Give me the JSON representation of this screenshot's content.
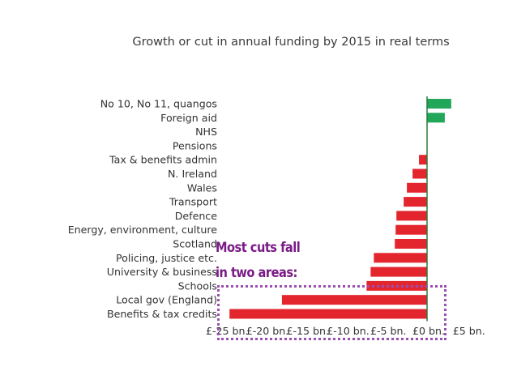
{
  "chart_data": {
    "type": "bar",
    "orientation": "horizontal",
    "title": "Growth or cut in annual funding by 2015 in real terms",
    "xlabel": "",
    "ylabel": "",
    "xlim": [
      -25,
      5
    ],
    "categories": [
      "No 10, No 11, quangos",
      "Foreign aid",
      "NHS",
      "Pensions",
      "Tax & benefits admin",
      "N. Ireland",
      "Wales",
      "Transport",
      "Defence",
      "Energy, environment, culture",
      "Scotland",
      "Policing, justice etc.",
      "University & business",
      "Schools",
      "Local gov (England)",
      "Benefits & tax credits"
    ],
    "values": [
      3.0,
      2.2,
      0,
      0,
      -1.0,
      -1.8,
      -2.5,
      -2.9,
      -3.8,
      -3.9,
      -4.0,
      -6.6,
      -7.0,
      -7.5,
      -18.0,
      -24.5
    ],
    "x_tick_values": [
      -25,
      -20,
      -15,
      -10,
      -5,
      0,
      5
    ],
    "x_tick_labels": [
      "£-25 bn.",
      "£-20 bn.",
      "£-15 bn.",
      "£-10 bn.",
      "£-5 bn.",
      "£0 bn.",
      "£5 bn."
    ],
    "colors": {
      "positive": "#22a65a",
      "negative": "#e3262e"
    },
    "annotation": {
      "line1": "Most cuts fall",
      "line2": "in two areas:",
      "color": "#7a1b86"
    },
    "grid": false
  }
}
